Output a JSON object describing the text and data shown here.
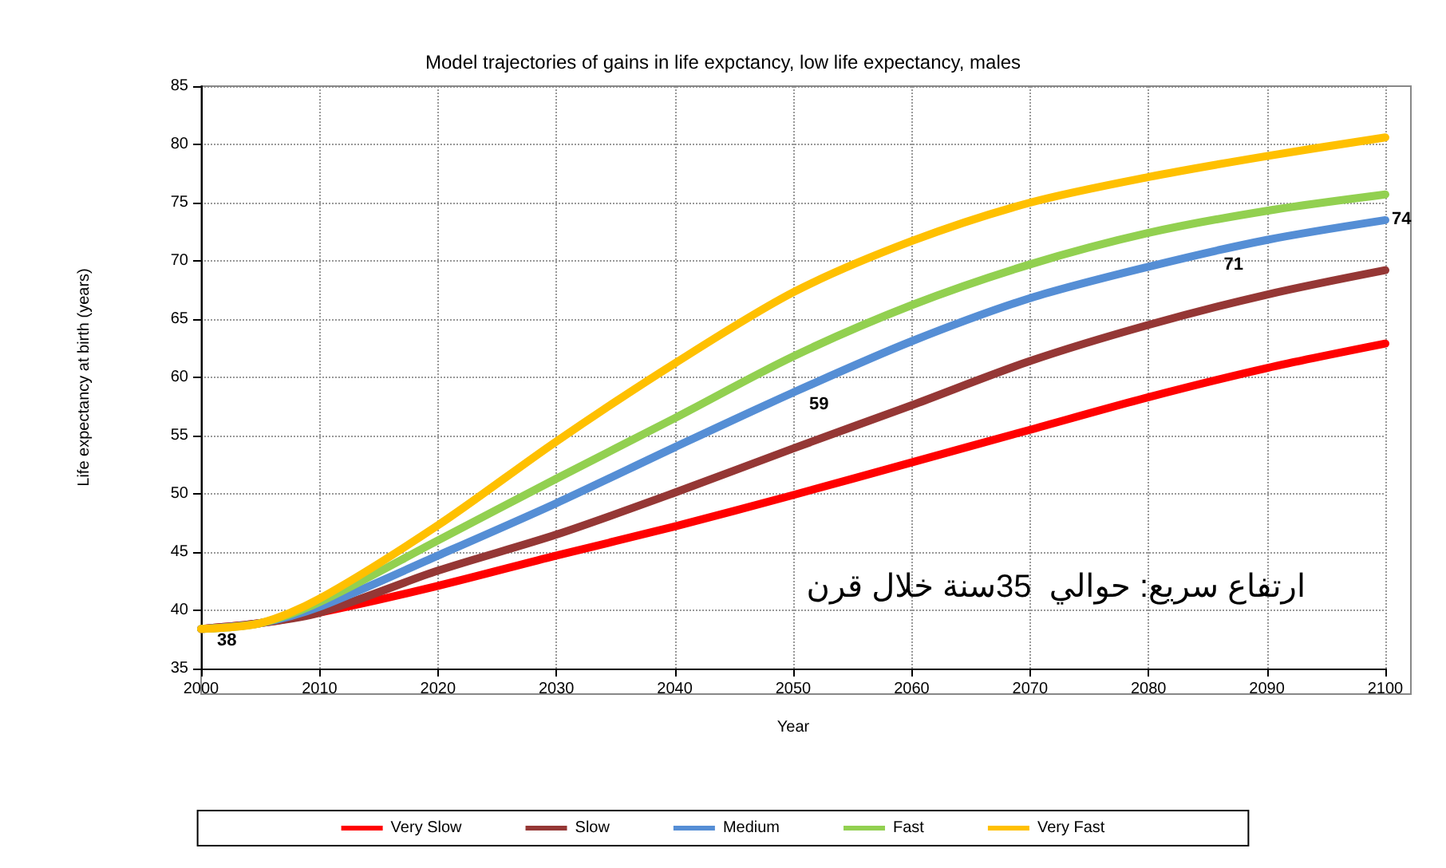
{
  "chart_data": {
    "type": "line",
    "title": "Model trajectories of gains in life expctancy, low life expectancy, males",
    "xlabel": "Year",
    "ylabel": "Life expectancy at birth (years)",
    "x": [
      2000,
      2005,
      2010,
      2020,
      2030,
      2040,
      2050,
      2060,
      2070,
      2080,
      2090,
      2100
    ],
    "series": [
      {
        "name": "Very Slow",
        "color": "#ff0000",
        "values": [
          38.4,
          38.9,
          39.8,
          42.1,
          44.7,
          47.2,
          49.9,
          52.7,
          55.5,
          58.3,
          60.8,
          62.9
        ]
      },
      {
        "name": "Slow",
        "color": "#953735",
        "values": [
          38.4,
          38.9,
          39.8,
          43.4,
          46.5,
          50.1,
          53.9,
          57.6,
          61.4,
          64.5,
          67.1,
          69.2
        ]
      },
      {
        "name": "Medium",
        "color": "#558ed5",
        "values": [
          38.4,
          38.9,
          40.3,
          44.7,
          49.2,
          54.0,
          58.7,
          63.1,
          66.8,
          69.5,
          71.8,
          73.5
        ]
      },
      {
        "name": "Fast",
        "color": "#92d050",
        "values": [
          38.4,
          38.9,
          40.7,
          46.0,
          51.3,
          56.5,
          61.8,
          66.2,
          69.7,
          72.4,
          74.3,
          75.7
        ]
      },
      {
        "name": "Very Fast",
        "color": "#ffc000",
        "values": [
          38.4,
          38.9,
          41.0,
          47.3,
          54.5,
          61.2,
          67.3,
          71.7,
          75.0,
          77.2,
          79.0,
          80.6
        ]
      }
    ],
    "annotations": [
      {
        "text": "38",
        "x": 2000,
        "y": 38.4
      },
      {
        "text": "59",
        "x": 2050,
        "y": 58.7
      },
      {
        "text": "71",
        "x": 2085,
        "y": 70.7
      },
      {
        "text": "74",
        "x": 2100,
        "y": 73.5
      },
      "ارتفاع سريع: حوالي  35سنة خلال قرن"
    ],
    "xlim": [
      2000,
      2100
    ],
    "xticks": [
      2000,
      2010,
      2020,
      2030,
      2040,
      2050,
      2060,
      2070,
      2080,
      2090,
      2100
    ],
    "ylim": [
      35,
      85
    ],
    "yticks": [
      35,
      40,
      45,
      50,
      55,
      60,
      65,
      70,
      75,
      80,
      85
    ],
    "grid": true,
    "legend": "bottom",
    "marker": "none",
    "line_style": "solid"
  }
}
